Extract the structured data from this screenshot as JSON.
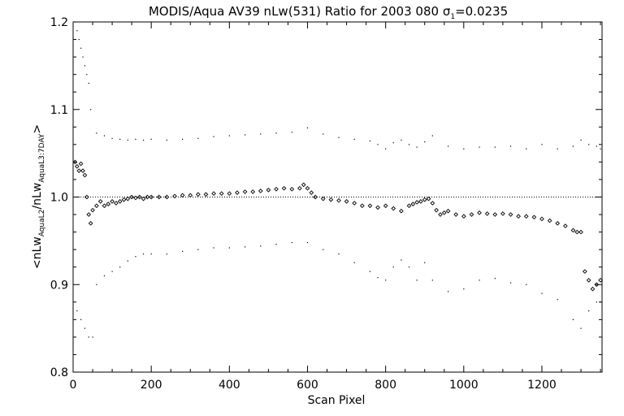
{
  "chart_data": {
    "type": "scatter",
    "title": {
      "main": "MODIS/Aqua AV39 nLw(531) Ratio for 2003 080 ",
      "sigma": "σ",
      "sigma_sub": "1",
      "sigma_value": "=0.0235"
    },
    "xlabel": "Scan Pixel",
    "ylabel": {
      "open": "<",
      "nlw1": "nLw",
      "sub1": "AquaL2",
      "slash": "/",
      "nlw2": "nLw",
      "sub2": "AquaL3:7DAY",
      "close": ">"
    },
    "xlim": [
      0,
      1354
    ],
    "ylim": [
      0.8,
      1.2
    ],
    "x_ticks": [
      0,
      200,
      400,
      600,
      800,
      1000,
      1200
    ],
    "x_tick_labels": [
      "0",
      "200",
      "400",
      "600",
      "800",
      "1000",
      "1200"
    ],
    "y_ticks": [
      0.8,
      0.9,
      1.0,
      1.1,
      1.2
    ],
    "y_tick_labels": [
      "0.8",
      "0.9",
      "1.0",
      "1.1",
      "1.2"
    ],
    "reference_line": 1.0,
    "grid": false,
    "series": [
      {
        "role": "mean_ratio",
        "marker": "diamond",
        "x": [
          5,
          10,
          15,
          20,
          25,
          30,
          35,
          40,
          45,
          50,
          60,
          70,
          80,
          90,
          100,
          110,
          120,
          130,
          140,
          150,
          160,
          170,
          180,
          190,
          200,
          220,
          240,
          260,
          280,
          300,
          320,
          340,
          360,
          380,
          400,
          420,
          440,
          460,
          480,
          500,
          520,
          540,
          560,
          580,
          590,
          600,
          610,
          620,
          640,
          660,
          680,
          700,
          720,
          740,
          760,
          780,
          800,
          820,
          840,
          860,
          870,
          880,
          890,
          900,
          910,
          920,
          930,
          940,
          950,
          960,
          980,
          1000,
          1020,
          1040,
          1060,
          1080,
          1100,
          1120,
          1140,
          1160,
          1180,
          1200,
          1220,
          1240,
          1260,
          1280,
          1290,
          1300,
          1310,
          1320,
          1330,
          1340,
          1350
        ],
        "y": [
          1.04,
          1.035,
          1.03,
          1.038,
          1.03,
          1.025,
          1.0,
          0.98,
          0.97,
          0.985,
          0.99,
          0.995,
          0.99,
          0.992,
          0.995,
          0.993,
          0.995,
          0.997,
          0.998,
          1.0,
          0.999,
          1.0,
          0.998,
          1.0,
          1.0,
          1.0,
          1.0,
          1.001,
          1.002,
          1.002,
          1.003,
          1.003,
          1.004,
          1.004,
          1.004,
          1.005,
          1.006,
          1.006,
          1.007,
          1.008,
          1.009,
          1.01,
          1.009,
          1.01,
          1.014,
          1.01,
          1.005,
          1.0,
          0.998,
          0.997,
          0.996,
          0.995,
          0.993,
          0.99,
          0.99,
          0.988,
          0.99,
          0.987,
          0.984,
          0.99,
          0.992,
          0.994,
          0.995,
          0.997,
          0.998,
          0.993,
          0.985,
          0.98,
          0.982,
          0.984,
          0.98,
          0.978,
          0.98,
          0.982,
          0.981,
          0.98,
          0.981,
          0.98,
          0.978,
          0.978,
          0.977,
          0.975,
          0.973,
          0.97,
          0.967,
          0.962,
          0.96,
          0.96,
          0.915,
          0.905,
          0.895,
          0.9,
          0.905
        ]
      },
      {
        "role": "upper_bound",
        "marker": "dot",
        "x": [
          5,
          10,
          15,
          20,
          25,
          30,
          35,
          40,
          45,
          60,
          80,
          100,
          120,
          140,
          160,
          180,
          200,
          240,
          280,
          320,
          360,
          400,
          440,
          480,
          520,
          560,
          600,
          640,
          680,
          720,
          760,
          780,
          800,
          820,
          840,
          860,
          880,
          900,
          920,
          960,
          1000,
          1040,
          1080,
          1120,
          1160,
          1200,
          1240,
          1280,
          1300,
          1320,
          1340,
          1350
        ],
        "y": [
          1.2,
          1.19,
          1.18,
          1.17,
          1.16,
          1.15,
          1.14,
          1.13,
          1.1,
          1.073,
          1.07,
          1.067,
          1.066,
          1.065,
          1.066,
          1.065,
          1.066,
          1.065,
          1.066,
          1.067,
          1.069,
          1.07,
          1.071,
          1.072,
          1.073,
          1.074,
          1.079,
          1.072,
          1.068,
          1.066,
          1.064,
          1.06,
          1.055,
          1.062,
          1.065,
          1.06,
          1.057,
          1.063,
          1.07,
          1.058,
          1.055,
          1.057,
          1.057,
          1.058,
          1.055,
          1.06,
          1.055,
          1.058,
          1.065,
          1.06,
          1.058,
          1.055
        ]
      },
      {
        "role": "lower_bound",
        "marker": "dot",
        "x": [
          10,
          20,
          30,
          40,
          50,
          60,
          80,
          100,
          120,
          140,
          160,
          180,
          200,
          240,
          280,
          320,
          360,
          400,
          440,
          480,
          520,
          560,
          600,
          640,
          680,
          720,
          760,
          780,
          800,
          820,
          840,
          860,
          880,
          900,
          920,
          960,
          1000,
          1040,
          1080,
          1120,
          1160,
          1200,
          1240,
          1280,
          1300,
          1320,
          1340,
          1350
        ],
        "y": [
          0.87,
          0.86,
          0.85,
          0.84,
          0.84,
          0.9,
          0.91,
          0.915,
          0.92,
          0.927,
          0.932,
          0.935,
          0.935,
          0.935,
          0.938,
          0.94,
          0.942,
          0.942,
          0.943,
          0.944,
          0.946,
          0.948,
          0.948,
          0.94,
          0.935,
          0.925,
          0.915,
          0.908,
          0.905,
          0.92,
          0.928,
          0.92,
          0.905,
          0.925,
          0.905,
          0.892,
          0.895,
          0.905,
          0.907,
          0.902,
          0.9,
          0.89,
          0.883,
          0.86,
          0.85,
          0.87,
          0.88,
          0.88
        ]
      }
    ]
  }
}
